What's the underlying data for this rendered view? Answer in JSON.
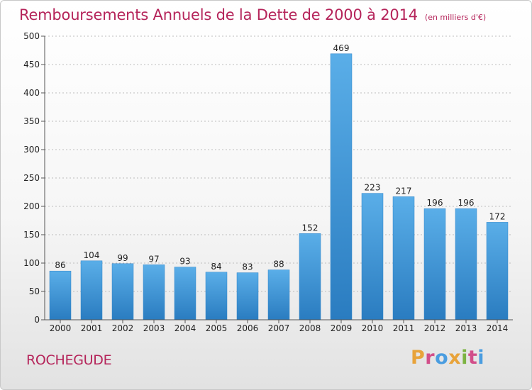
{
  "chart_data": {
    "type": "bar",
    "title": "Remboursements Annuels de la Dette de 2000 à 2014",
    "unit": "(en milliers d'€)",
    "categories": [
      "2000",
      "2001",
      "2002",
      "2003",
      "2004",
      "2005",
      "2006",
      "2007",
      "2008",
      "2009",
      "2010",
      "2011",
      "2012",
      "2013",
      "2014"
    ],
    "values": [
      86,
      104,
      99,
      97,
      93,
      84,
      83,
      88,
      152,
      469,
      223,
      217,
      196,
      196,
      172
    ],
    "ylim": [
      0,
      500
    ],
    "yticks": [
      0,
      50,
      100,
      150,
      200,
      250,
      300,
      350,
      400,
      450,
      500
    ],
    "grid": true,
    "bar_color": "#4a9de0"
  },
  "footer": {
    "commune": "ROCHEGUDE",
    "logo": "Proxiti"
  },
  "colors": {
    "title": "#b5245a",
    "logo_letters": [
      "#e8a33a",
      "#d24f8a",
      "#4a9de0",
      "#e8a33a",
      "#7cb342",
      "#d24f8a",
      "#4a9de0"
    ]
  }
}
